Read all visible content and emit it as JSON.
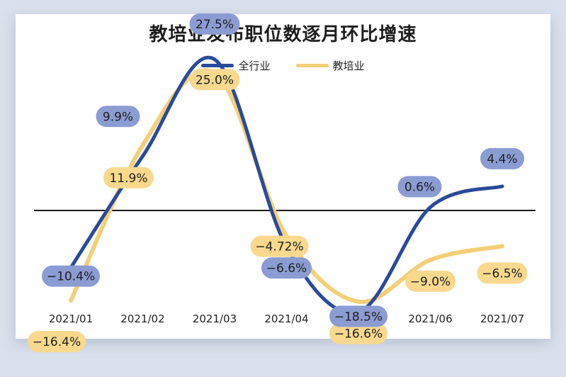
{
  "chart_data": {
    "type": "line",
    "title": "教培业发布职位数逐月环比增速",
    "xlabel": "",
    "ylabel": "",
    "categories": [
      "2021/01",
      "2021/02",
      "2021/03",
      "2021/04",
      "2021/05",
      "2021/06",
      "2021/07"
    ],
    "series": [
      {
        "name": "全行业",
        "color": "#2a4a9a",
        "label_color": "#8b9cd3",
        "values": [
          -10.4,
          9.9,
          27.5,
          -6.6,
          -18.5,
          0.6,
          4.4
        ],
        "labels": [
          "−10.4%",
          "9.9%",
          "27.5%",
          "−6.6%",
          "−18.5%",
          "0.6%",
          "4.4%"
        ]
      },
      {
        "name": "教培业",
        "color": "#f4cf78",
        "label_color": "#f8d98e",
        "values": [
          -16.4,
          11.9,
          25.0,
          -4.72,
          -16.6,
          -9.0,
          -6.5
        ],
        "labels": [
          "−16.4%",
          "11.9%",
          "25.0%",
          "−4.72%",
          "−16.6%",
          "−9.0%",
          "−6.5%"
        ]
      }
    ],
    "ylim": [
      -25,
      35
    ],
    "grid": false,
    "zero_line": true,
    "legend": "top-center"
  }
}
